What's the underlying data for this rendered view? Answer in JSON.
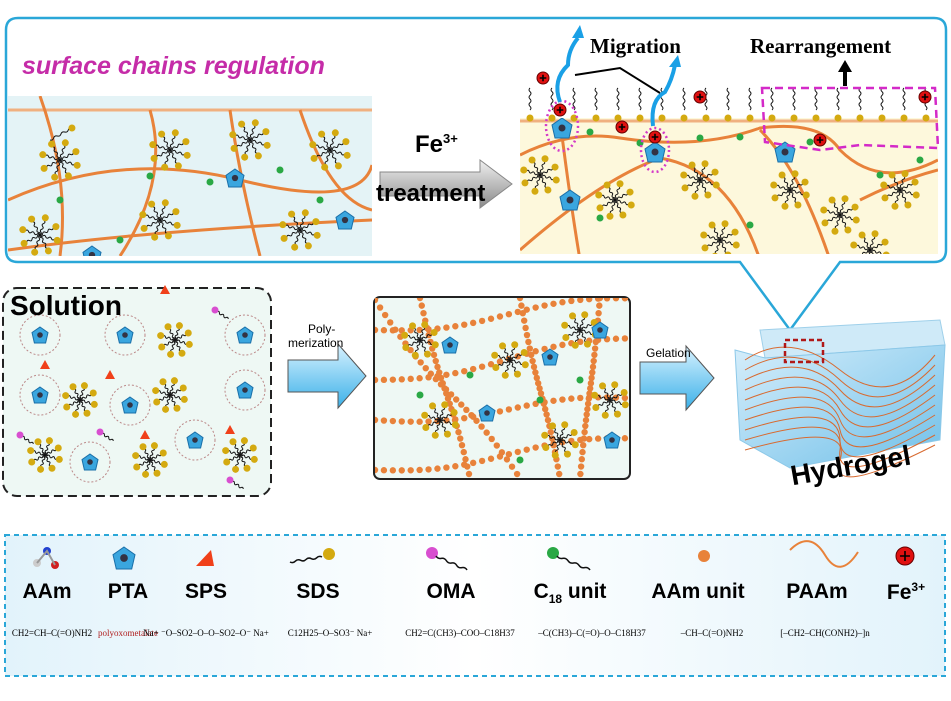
{
  "top_panel": {
    "title": "surface chains regulation",
    "treatment_ion": "Fe",
    "treatment_ion_charge": "3+",
    "treatment_label": "treatment",
    "migration_label": "Migration",
    "rearrangement_label": "Rearrangement"
  },
  "process": {
    "solution_label": "Solution",
    "polymerization_label_1": "Poly-",
    "polymerization_label_2": "merization",
    "gelation_label": "Gelation",
    "hydrogel_label": "Hydrogel"
  },
  "legend": {
    "items": [
      {
        "label": "AAm",
        "icon": "aam-molecule-icon",
        "formula": "CH2=CH–C(=O)NH2"
      },
      {
        "label": "PTA",
        "icon": "pta-cluster-icon",
        "formula": "polyoxometalate"
      },
      {
        "label": "SPS",
        "icon": "triangle-icon",
        "formula": "Na+ ⁻O–SO2–O–O–SO2–O⁻ Na+"
      },
      {
        "label": "SDS",
        "icon": "tail-yellow-head-icon",
        "formula": "C12H25–O–SO3⁻ Na+"
      },
      {
        "label": "OMA",
        "icon": "tail-magenta-head-icon",
        "formula": "CH2=C(CH3)–COO–C18H37"
      },
      {
        "label": "C",
        "sub": "18",
        "label_suffix": " unit",
        "icon": "tail-green-head-icon",
        "formula": "–C(CH3)–C(=O)–O–C18H37"
      },
      {
        "label": "AAm unit",
        "icon": "orange-dot-icon",
        "formula": "–CH–C(=O)NH2"
      },
      {
        "label": "PAAm",
        "icon": "wave-icon",
        "formula": "[–CH2–CH(CONH2)–]n"
      },
      {
        "label": "Fe",
        "sup": "3+",
        "icon": "fe-plus-icon",
        "formula": ""
      }
    ]
  },
  "colors": {
    "frame_blue": "#2aa7d8",
    "title_magenta": "#c52ca8",
    "chain_orange": "#e8823a",
    "sds_yellow": "#d4aa10",
    "c18_green": "#2aa845",
    "oma_magenta": "#d84fd0",
    "fe_red": "#e01010",
    "sps_red": "#f0401a",
    "pta_blue": "#3aa6df",
    "hydrogel_blue": "#a8d8f0",
    "arrow_blue": "#5cc0ee"
  }
}
